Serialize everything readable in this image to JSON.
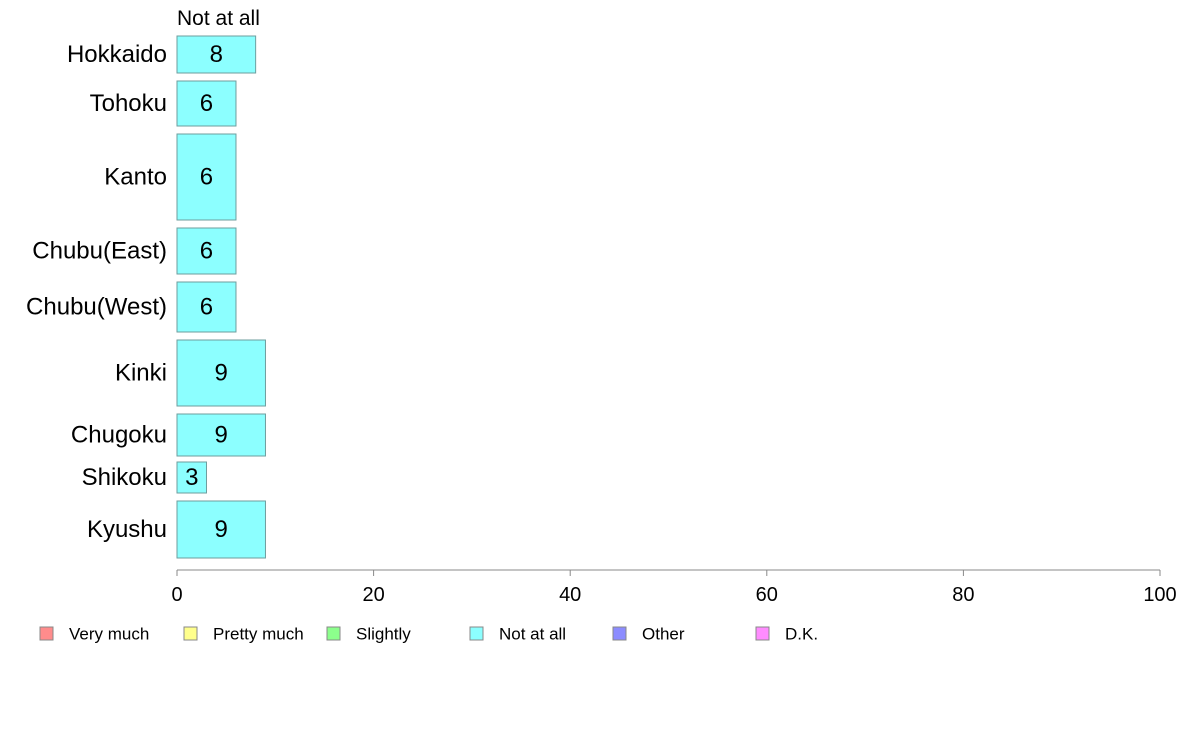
{
  "chart_data": {
    "type": "bar",
    "orientation": "horizontal",
    "stacked": true,
    "shown_series": "Not at all",
    "categories": [
      "Hokkaido",
      "Tohoku",
      "Kanto",
      "Chubu(East)",
      "Chubu(West)",
      "Kinki",
      "Chugoku",
      "Shikoku",
      "Kyushu"
    ],
    "values": [
      8,
      6,
      6,
      6,
      6,
      9,
      9,
      3,
      9
    ],
    "value_labels": [
      "8",
      "6",
      "6",
      "6",
      "6",
      "9",
      "9",
      "3",
      "9"
    ],
    "xlim": [
      0,
      100
    ],
    "xticks": [
      0,
      20,
      40,
      60,
      80,
      100
    ],
    "legend": {
      "placement": "bottom",
      "entries": [
        {
          "name": "Very much",
          "color": "#ff8c8c"
        },
        {
          "name": "Pretty much",
          "color": "#ffff8c"
        },
        {
          "name": "Slightly",
          "color": "#8cff8c"
        },
        {
          "name": "Not at all",
          "color": "#8cffff"
        },
        {
          "name": "Other",
          "color": "#8c8cff"
        },
        {
          "name": "D.K.",
          "color": "#ff8cff"
        }
      ]
    },
    "bar_color": "#8cffff",
    "bar_edge_color": "#6e9e9e",
    "axis_color": "#888888",
    "grid": false
  }
}
